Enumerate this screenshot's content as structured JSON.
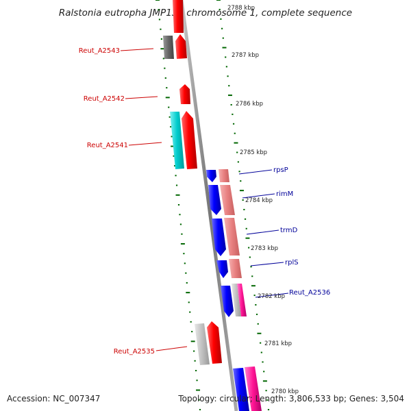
{
  "title": "Ralstonia eutropha JMP134 chromosome 1, complete sequence",
  "ruler_labels": [
    {
      "text": "2788 kbp"
    },
    {
      "text": "2787 kbp"
    },
    {
      "text": "2786 kbp"
    },
    {
      "text": "2785 kbp"
    },
    {
      "text": "2784 kbp"
    },
    {
      "text": "2783 kbp"
    },
    {
      "text": "2782 kbp"
    },
    {
      "text": "2781 kbp"
    },
    {
      "text": "2780 kbp"
    }
  ],
  "gene_labels": [
    {
      "text": "Reut_A2543",
      "color": "#cc0000"
    },
    {
      "text": "Reut_A2542",
      "color": "#cc0000"
    },
    {
      "text": "Reut_A2541",
      "color": "#cc0000"
    },
    {
      "text": "rpsP",
      "color": "#000099"
    },
    {
      "text": "rimM",
      "color": "#000099"
    },
    {
      "text": "trmD",
      "color": "#000099"
    },
    {
      "text": "rplS",
      "color": "#000099"
    },
    {
      "text": "Reut_A2536",
      "color": "#000099"
    },
    {
      "text": "Reut_A2535",
      "color": "#cc0000"
    }
  ],
  "footer": {
    "accession": "Accession: NC_007347",
    "topology": "Topology: circular; Length: 3,806,533 bp; Genes: 3,504"
  },
  "colors": {
    "forward_strand": "#ff0000",
    "reverse_strand": "#0000ff",
    "rna": "#00cccc",
    "pseudo": "#777777",
    "tick": "#006600",
    "backbone": "#888888"
  }
}
